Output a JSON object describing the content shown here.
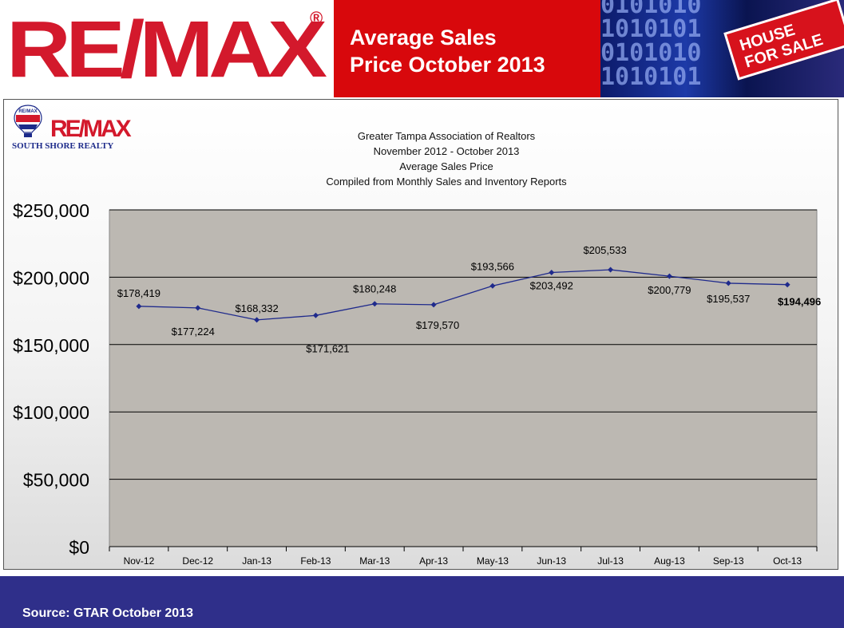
{
  "header": {
    "logo": "RE/MAX",
    "logo_mark": "®",
    "title_line_1": "Average Sales",
    "title_line_2": "Price October 2013",
    "photo_sign_text_1": "HOUSE",
    "photo_sign_text_2": "FOR SALE",
    "photo_binary": "0101010\n1010101\n0101010\n1010101"
  },
  "chart_header": {
    "small_logo": "RE/MAX",
    "small_logo_sub": "SOUTH SHORE REALTY",
    "balloon_text": "RE/MAX",
    "subtitle_lines": [
      "Greater Tampa Association of Realtors",
      "November 2012  -  October 2013",
      "Average Sales Price",
      "Compiled from Monthly Sales and Inventory Reports"
    ]
  },
  "chart_data": {
    "type": "line",
    "title": "",
    "xlabel": "",
    "ylabel": "",
    "categories": [
      "Nov-12",
      "Dec-12",
      "Jan-13",
      "Feb-13",
      "Mar-13",
      "Apr-13",
      "May-13",
      "Jun-13",
      "Jul-13",
      "Aug-13",
      "Sep-13",
      "Oct-13"
    ],
    "series": [
      {
        "values": [
          178419,
          177224,
          168332,
          171621,
          180248,
          179570,
          193566,
          203492,
          205533,
          200779,
          195537,
          194496
        ],
        "labels": [
          "$178,419",
          "$177,224",
          "$168,332",
          "$171,621",
          "$180,248",
          "$179,570",
          "$193,566",
          "$203,492",
          "$205,533",
          "$200,779",
          "$195,537",
          "$194,496"
        ]
      }
    ],
    "ylim": [
      0,
      250000
    ],
    "yticks": [
      0,
      50000,
      100000,
      150000,
      200000,
      250000
    ],
    "ytick_labels": [
      "$0",
      "$50,000",
      "$100,000",
      "$150,000",
      "$200,000",
      "$250,000"
    ],
    "grid": true,
    "line_color": "#1f2a8c",
    "plot_background": "#bcb8b2"
  },
  "footer": {
    "source": "Source: GTAR October 2013"
  },
  "colors": {
    "brand_red": "#d8080c",
    "footer_blue": "#2f2f8a"
  }
}
